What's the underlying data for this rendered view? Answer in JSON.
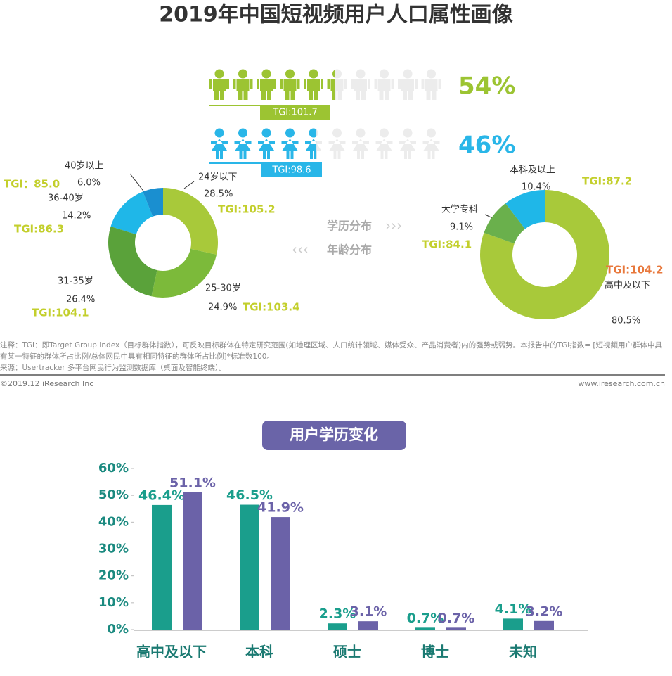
{
  "title": "2019年中国短视频用户人口属性画像",
  "chart_data": [
    {
      "type": "pictogram",
      "ylim": [
        0,
        100
      ],
      "series": [
        {
          "color": "#9cc432",
          "values": [
            54
          ],
          "value_labels": [
            "54%"
          ],
          "annotation": "TGI:101.7"
        },
        {
          "color": "#29b6e8",
          "values": [
            46
          ],
          "value_labels": [
            "46%"
          ],
          "annotation": "TGI:98.6"
        }
      ]
    },
    {
      "type": "donut",
      "categories": [
        "24岁以下",
        "25-30岁",
        "31-35岁",
        "36-40岁",
        "40岁以上"
      ],
      "values": [
        28.5,
        24.9,
        26.4,
        14.2,
        6.0
      ],
      "value_labels": [
        "28.5%",
        "24.9%",
        "26.4%",
        "14.2%",
        "6.0%"
      ],
      "annotations": [
        "TGI:105.2",
        "TGI:103.4",
        "TGI:104.1",
        "TGI:86.3",
        "TGI：85.0"
      ],
      "annotation_colors": [
        "#c3cf2c",
        "#c3cf2c",
        "#c3cf2c",
        "#c3cf2c",
        "#c3cf2c"
      ],
      "colors": [
        "#a8c93a",
        "#7cba3a",
        "#5aa23a",
        "#1fb7e8",
        "#1a8fd0"
      ]
    },
    {
      "type": "donut",
      "categories": [
        "高中及以下",
        "大学专科",
        "本科及以上"
      ],
      "values": [
        80.5,
        9.1,
        10.4
      ],
      "value_labels": [
        "80.5%",
        "9.1%",
        "10.4%"
      ],
      "annotations": [
        "TGI:104.2",
        "TGI:84.1",
        "TGI:87.2"
      ],
      "annotation_colors": [
        "#e8783c",
        "#c3cf2c",
        "#c3cf2c"
      ],
      "colors": [
        "#a8c93a",
        "#6ab04c",
        "#1fb7e8"
      ]
    },
    {
      "type": "bar",
      "title": "用户学历变化",
      "categories": [
        "高中及以下",
        "本科",
        "硕士",
        "博士",
        "未知"
      ],
      "series": [
        {
          "color": "#1a9e8c",
          "values": [
            46.4,
            46.5,
            2.3,
            0.7,
            4.1
          ],
          "value_labels": [
            "46.4%",
            "46.5%",
            "2.3%",
            "0.7%",
            "4.1%"
          ]
        },
        {
          "color": "#6b62a8",
          "values": [
            51.1,
            41.9,
            3.1,
            0.7,
            3.2
          ],
          "value_labels": [
            "51.1%",
            "41.9%",
            "3.1%",
            "0.7%",
            "3.2%"
          ]
        }
      ],
      "ylim": [
        0,
        60
      ],
      "yticks": [
        {
          "value": 0,
          "label": "0%"
        },
        {
          "value": 10,
          "label": "10%"
        },
        {
          "value": 20,
          "label": "20%"
        },
        {
          "value": 30,
          "label": "30%"
        },
        {
          "value": 40,
          "label": "40%"
        },
        {
          "value": 50,
          "label": "50%"
        },
        {
          "value": 60,
          "label": "60%"
        }
      ]
    }
  ],
  "nav_labels": [
    "学历分布",
    "年龄分布"
  ],
  "notes": [
    "注释：TGI：即Target Group Index（目标群体指数），可反映目标群体在特定研究范围(如地理区域、人口统计领域、媒体受众、产品消费者)内的强势或弱势。本报告中的TGI指数= [短视频用户群体中具有某一特征的群体所占比例/总体网民中具有相同特征的群体所占比例]*标准数100。",
    "来源：Usertracker 多平台网民行为监测数据库（桌面及智能终端）。"
  ],
  "footer": {
    "copyright": "©2019.12 iResearch Inc",
    "website": "www.iresearch.com.cn"
  }
}
